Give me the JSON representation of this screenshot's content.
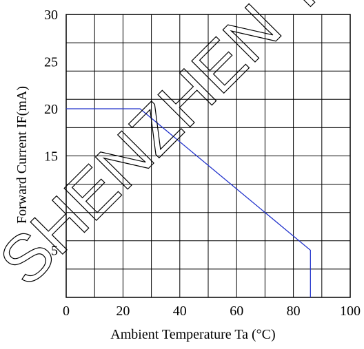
{
  "chart_data": {
    "type": "line",
    "xlabel": "Ambient  Temperature  Ta (°C)",
    "ylabel": "Forward Current IF(mA)",
    "xlim": [
      0,
      100
    ],
    "ylim": [
      0,
      30
    ],
    "grid": true,
    "x_ticks": [
      0,
      20,
      40,
      60,
      80,
      100
    ],
    "x_tick_labels": [
      "0",
      "20",
      "40",
      "60",
      "80",
      "100"
    ],
    "y_ticks": [
      30,
      25,
      20,
      15,
      5
    ],
    "y_tick_labels": [
      "30",
      "25",
      "20",
      "15",
      "5"
    ],
    "series": [
      {
        "color": "#2233cc",
        "x": [
          0,
          26,
          86,
          86
        ],
        "y": [
          20,
          20,
          5,
          0
        ]
      }
    ]
  },
  "watermark": "SHENZHEN YOU"
}
